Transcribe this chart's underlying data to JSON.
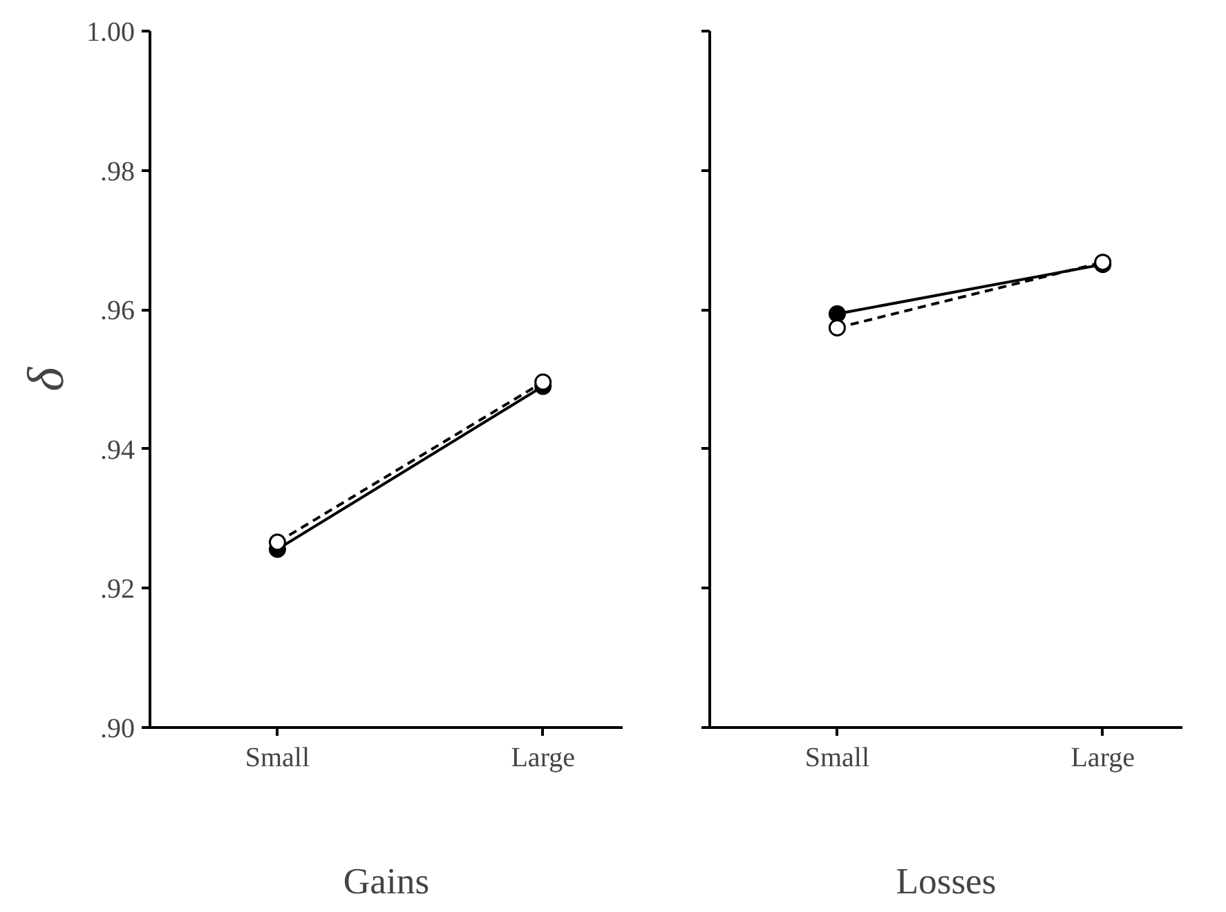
{
  "chart_data": [
    {
      "type": "line",
      "xlabel": "Gains",
      "ylabel": "δ",
      "categories": [
        "Small",
        "Large"
      ],
      "ylim": [
        0.9,
        1.0
      ],
      "yticks": [
        {
          "value": 0.9,
          "label": ".90"
        },
        {
          "value": 0.92,
          "label": ".92"
        },
        {
          "value": 0.94,
          "label": ".94"
        },
        {
          "value": 0.96,
          "label": ".96"
        },
        {
          "value": 0.98,
          "label": ".98"
        },
        {
          "value": 1.0,
          "label": "1.00"
        }
      ],
      "marker": "circle",
      "grid": false,
      "series": [
        {
          "color": "#000000",
          "line_style": "solid",
          "values": [
            0.9256,
            0.949
          ]
        },
        {
          "color": "#000000",
          "line_style": "dashed",
          "values": [
            0.9266,
            0.9496
          ]
        }
      ]
    },
    {
      "type": "line",
      "xlabel": "Losses",
      "categories": [
        "Small",
        "Large"
      ],
      "ylim": [
        0.9,
        1.0
      ],
      "yticks": [
        {
          "value": 0.9,
          "label": null
        },
        {
          "value": 0.92,
          "label": null
        },
        {
          "value": 0.94,
          "label": null
        },
        {
          "value": 0.96,
          "label": null
        },
        {
          "value": 0.98,
          "label": null
        },
        {
          "value": 1.0,
          "label": null
        }
      ],
      "tick_labels": "x",
      "marker": "circle",
      "grid": false,
      "series": [
        {
          "color": "#000000",
          "line_style": "solid",
          "values": [
            0.9594,
            0.9665
          ]
        },
        {
          "color": "#000000",
          "line_style": "dashed",
          "values": [
            0.9574,
            0.9668
          ]
        }
      ]
    }
  ]
}
